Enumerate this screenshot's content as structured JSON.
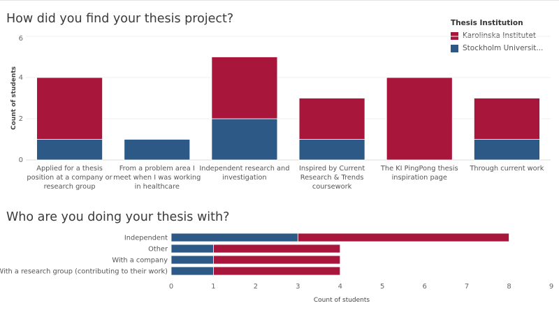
{
  "colors": {
    "karolinska": "#a8163b",
    "stockholm": "#2c5985",
    "grid": "#efefef",
    "axis_text": "#666666",
    "label_text": "#555555"
  },
  "legend": {
    "title": "Thesis Institution",
    "items": [
      {
        "label": "Karolinska Institutet",
        "color": "#a8163b"
      },
      {
        "label": "Stockholm Universit...",
        "color": "#2c5985"
      }
    ]
  },
  "chart_data": [
    {
      "type": "bar",
      "orientation": "vertical",
      "stacked": true,
      "title": "How did you find your thesis project?",
      "ylabel": "Count of students",
      "xlabel": "",
      "ylim": [
        0,
        6
      ],
      "yticks": [
        0,
        2,
        4,
        6
      ],
      "grid": true,
      "legend_position": "top-right",
      "categories": [
        [
          "Applied for a thesis",
          "position at a company or",
          "research group"
        ],
        [
          "From a problem area I",
          "meet when I was working",
          "in healthcare"
        ],
        [
          "Independent research and",
          "investigation"
        ],
        [
          "Inspired by Current",
          "Research & Trends",
          "coursework"
        ],
        [
          "The KI PingPong thesis",
          "inspiration page"
        ],
        [
          "Through current work"
        ]
      ],
      "series": [
        {
          "name": "Stockholm Universit...",
          "color": "#2c5985",
          "values": [
            1,
            1,
            2,
            1,
            0,
            1
          ]
        },
        {
          "name": "Karolinska Institutet",
          "color": "#a8163b",
          "values": [
            3,
            0,
            3,
            2,
            4,
            2
          ]
        }
      ]
    },
    {
      "type": "bar",
      "orientation": "horizontal",
      "stacked": true,
      "title": "Who are you doing your thesis with?",
      "xlabel": "Count of students",
      "ylabel": "",
      "xlim": [
        0,
        9
      ],
      "xticks": [
        0,
        1,
        2,
        3,
        4,
        5,
        6,
        7,
        8,
        9
      ],
      "grid": false,
      "categories": [
        "Independent",
        "Other",
        "With a company",
        "With a research group (contributing to their work)"
      ],
      "series": [
        {
          "name": "Stockholm Universit...",
          "color": "#2c5985",
          "values": [
            3,
            1,
            1,
            1
          ]
        },
        {
          "name": "Karolinska Institutet",
          "color": "#a8163b",
          "values": [
            5,
            3,
            3,
            3
          ]
        }
      ]
    }
  ]
}
